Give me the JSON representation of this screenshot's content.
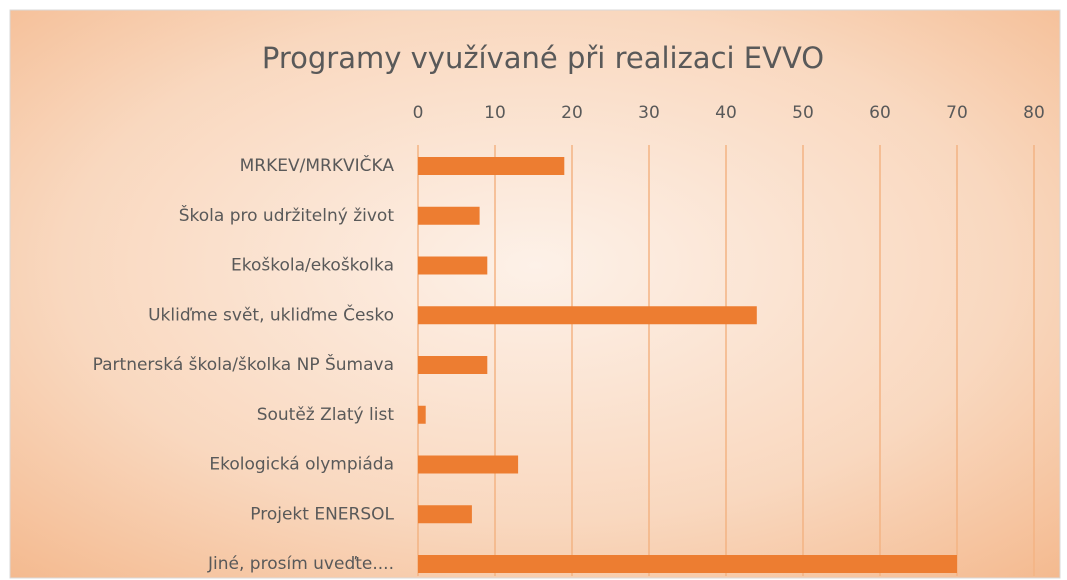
{
  "chart_data": {
    "type": "bar",
    "orientation": "horizontal",
    "title": "Programy využívané při realizaci  EVVO",
    "categories": [
      "MRKEV/MRKVIČKA",
      "Škola pro udržitelný život",
      "Ekoškola/ekoškolka",
      "Ukliďme svět, ukliďme Česko",
      "Partnerská škola/školka NP Šumava",
      "Soutěž Zlatý list",
      "Ekologická olympiáda",
      "Projekt ENERSOL",
      "Jiné, prosím uveďte...."
    ],
    "values": [
      19,
      8,
      9,
      44,
      9,
      1,
      13,
      7,
      70
    ],
    "color": "#ed7d31",
    "xlim": [
      0,
      80
    ],
    "xticks": [
      0,
      10,
      20,
      30,
      40,
      50,
      60,
      70,
      80
    ],
    "grid": true
  }
}
